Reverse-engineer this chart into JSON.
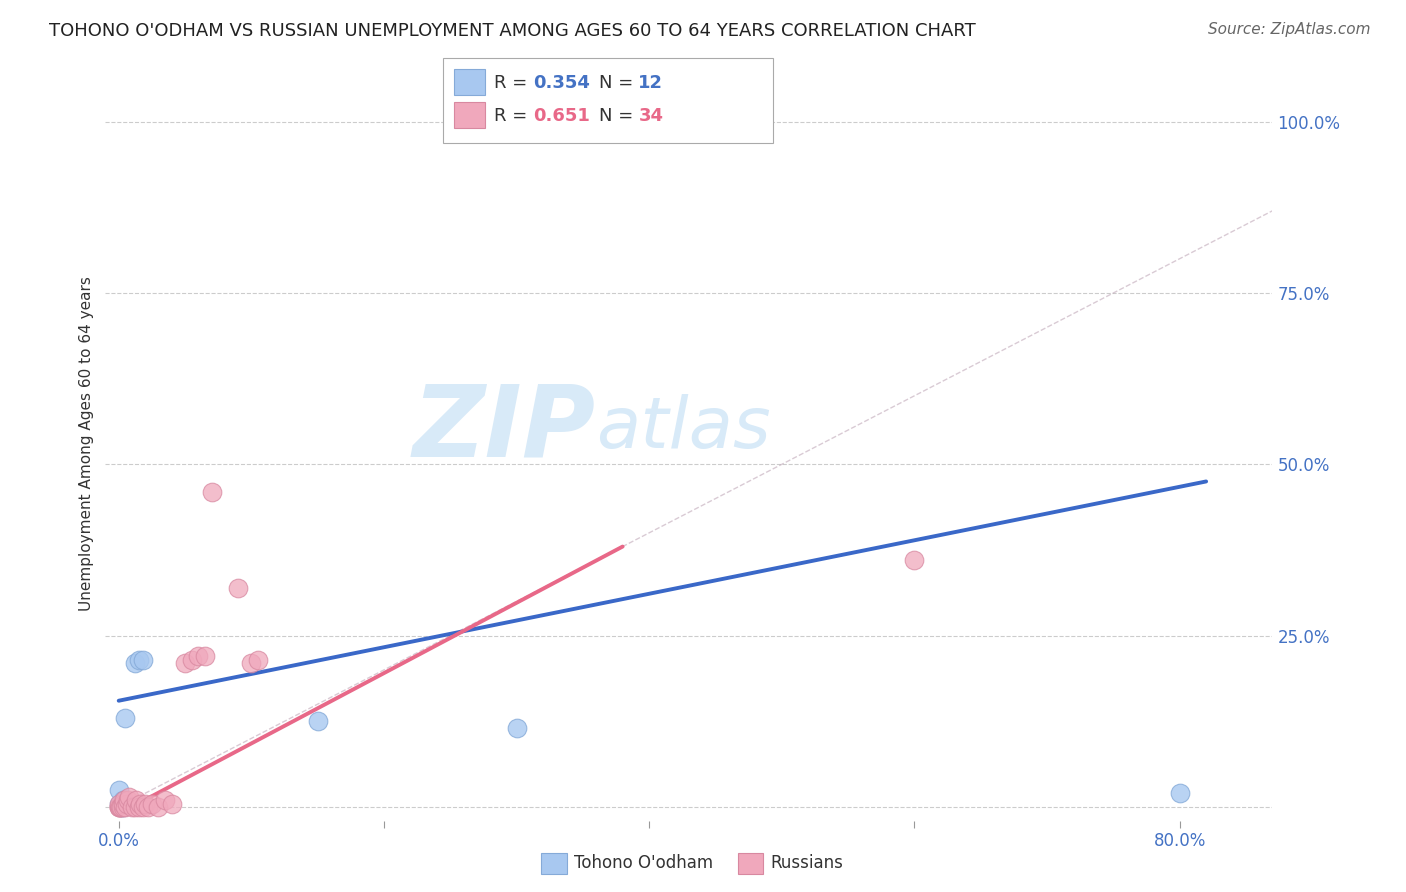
{
  "title": "TOHONO O'ODHAM VS RUSSIAN UNEMPLOYMENT AMONG AGES 60 TO 64 YEARS CORRELATION CHART",
  "source": "Source: ZipAtlas.com",
  "ylabel": "Unemployment Among Ages 60 to 64 years",
  "xlabel": "",
  "xlim": [
    -0.01,
    0.87
  ],
  "ylim": [
    -0.02,
    1.08
  ],
  "background_color": "#ffffff",
  "grid_color": "#cccccc",
  "tohono_color": "#a8c8f0",
  "tohono_edge": "#85aad8",
  "russian_color": "#f0a8bc",
  "russian_edge": "#d888a0",
  "tohono_R": 0.354,
  "tohono_N": 12,
  "russian_R": 0.651,
  "russian_N": 34,
  "tohono_dots": [
    [
      0.0,
      0.005
    ],
    [
      0.0,
      0.025
    ],
    [
      0.002,
      0.0
    ],
    [
      0.003,
      0.0
    ],
    [
      0.003,
      0.01
    ],
    [
      0.005,
      0.13
    ],
    [
      0.012,
      0.21
    ],
    [
      0.015,
      0.215
    ],
    [
      0.018,
      0.215
    ],
    [
      0.15,
      0.125
    ],
    [
      0.3,
      0.115
    ],
    [
      0.8,
      0.02
    ]
  ],
  "russian_dots": [
    [
      0.0,
      0.0
    ],
    [
      0.0,
      0.0
    ],
    [
      0.0,
      0.0
    ],
    [
      0.0,
      0.005
    ],
    [
      0.001,
      0.0
    ],
    [
      0.002,
      0.0
    ],
    [
      0.003,
      0.0
    ],
    [
      0.003,
      0.005
    ],
    [
      0.004,
      0.01
    ],
    [
      0.005,
      0.0
    ],
    [
      0.006,
      0.005
    ],
    [
      0.007,
      0.01
    ],
    [
      0.008,
      0.015
    ],
    [
      0.01,
      0.0
    ],
    [
      0.012,
      0.0
    ],
    [
      0.013,
      0.01
    ],
    [
      0.015,
      0.0
    ],
    [
      0.016,
      0.005
    ],
    [
      0.018,
      0.0
    ],
    [
      0.02,
      0.005
    ],
    [
      0.022,
      0.0
    ],
    [
      0.025,
      0.005
    ],
    [
      0.03,
      0.0
    ],
    [
      0.035,
      0.01
    ],
    [
      0.04,
      0.005
    ],
    [
      0.05,
      0.21
    ],
    [
      0.055,
      0.215
    ],
    [
      0.06,
      0.22
    ],
    [
      0.065,
      0.22
    ],
    [
      0.07,
      0.46
    ],
    [
      0.09,
      0.32
    ],
    [
      0.1,
      0.21
    ],
    [
      0.105,
      0.215
    ],
    [
      0.6,
      0.36
    ]
  ],
  "blue_line_x": [
    0.0,
    0.82
  ],
  "blue_line_y": [
    0.155,
    0.475
  ],
  "pink_line_x": [
    0.0,
    0.38
  ],
  "pink_line_y": [
    -0.01,
    0.38
  ],
  "diag_line_x": [
    0.0,
    0.87
  ],
  "diag_line_y": [
    0.0,
    0.87
  ],
  "watermark_zip": "ZIP",
  "watermark_atlas": "atlas",
  "watermark_color": "#d8eaf8",
  "title_fontsize": 13,
  "axis_label_fontsize": 11,
  "tick_fontsize": 12,
  "legend_fontsize": 13,
  "source_fontsize": 11
}
